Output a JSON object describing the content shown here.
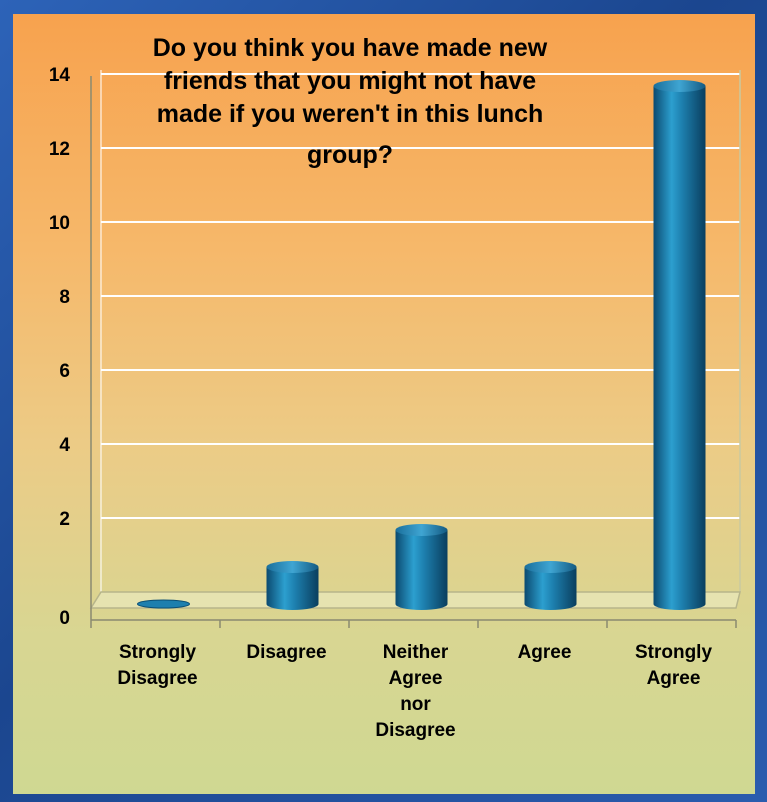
{
  "chart_data": {
    "type": "bar",
    "title_lines": [
      "Do you think you have made new",
      "friends that you might not have",
      "made if you weren't in this lunch",
      "group?"
    ],
    "categories": [
      [
        "Strongly",
        "Disagree"
      ],
      [
        "Disagree"
      ],
      [
        "Neither",
        "Agree",
        "nor",
        "Disagree"
      ],
      [
        "Agree"
      ],
      [
        "Strongly",
        "Agree"
      ]
    ],
    "values": [
      0,
      1,
      2,
      1,
      14
    ],
    "y_ticks": [
      "0",
      "2",
      "4",
      "6",
      "8",
      "10",
      "12",
      "14"
    ],
    "ylim": [
      0,
      14
    ],
    "grid": true,
    "legend": "none",
    "bar_style": "3d-cylinder",
    "colors": {
      "bar_body": "#1d7fae",
      "bar_dark": "#0c4f74",
      "bar_light": "#52b4da",
      "grid": "#ffffff",
      "frame_bg": "#1f4f9e"
    }
  }
}
